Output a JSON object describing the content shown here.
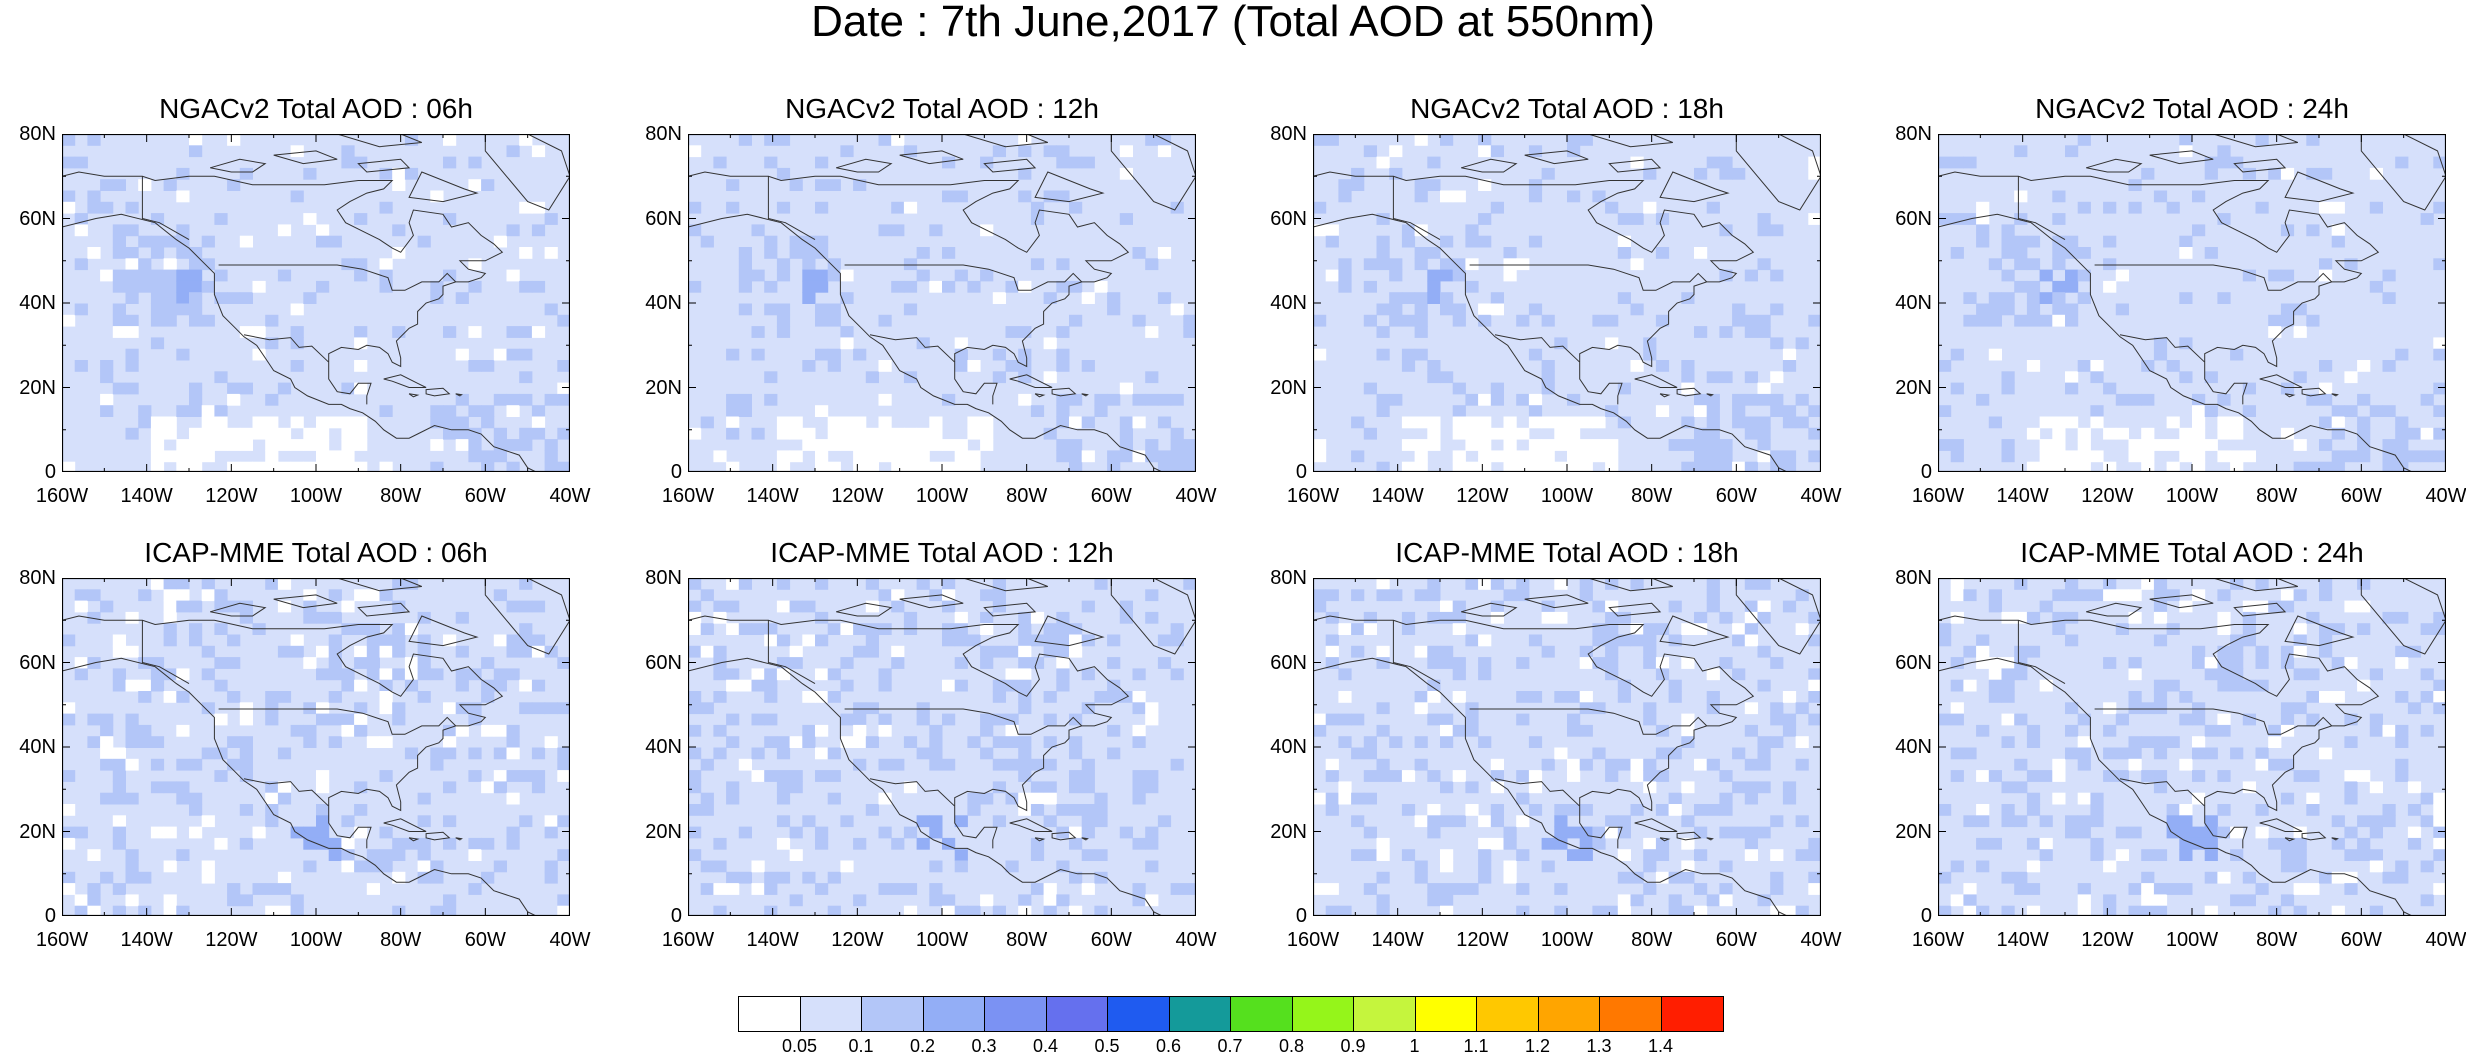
{
  "figure": {
    "title": "Date : 7th June,2017 (Total AOD at 550nm)"
  },
  "axes": {
    "lat_ticks": [
      "80N",
      "60N",
      "40N",
      "20N",
      "0"
    ],
    "lon_ticks": [
      "160W",
      "140W",
      "120W",
      "100W",
      "80W",
      "60W",
      "40W"
    ],
    "lon_range": [
      -160,
      -40
    ],
    "lat_range": [
      0,
      80
    ]
  },
  "panels": [
    {
      "title": "NGACv2 Total AOD : 06h"
    },
    {
      "title": "NGACv2 Total AOD : 12h"
    },
    {
      "title": "NGACv2 Total AOD : 18h"
    },
    {
      "title": "NGACv2 Total AOD : 24h"
    },
    {
      "title": "ICAP-MME Total AOD : 06h"
    },
    {
      "title": "ICAP-MME Total AOD : 12h"
    },
    {
      "title": "ICAP-MME Total AOD : 18h"
    },
    {
      "title": "ICAP-MME Total AOD : 24h"
    }
  ],
  "colorbar": {
    "labels": [
      "0.05",
      "0.1",
      "0.2",
      "0.3",
      "0.4",
      "0.5",
      "0.6",
      "0.7",
      "0.8",
      "0.9",
      "1",
      "1.1",
      "1.2",
      "1.3",
      "1.4"
    ],
    "colors": [
      "#ffffff",
      "#d6e0fb",
      "#b3c6f8",
      "#93aef6",
      "#7b92f3",
      "#6570ee",
      "#1f5bf0",
      "#149a9a",
      "#55e01e",
      "#95f51a",
      "#c5f53d",
      "#ffff00",
      "#ffc800",
      "#ffa500",
      "#ff7800",
      "#ff1e00"
    ]
  }
}
